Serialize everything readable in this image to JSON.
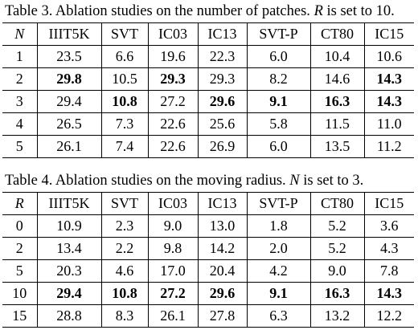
{
  "table3": {
    "caption_prefix": "Table 3. Ablation studies on the number of patches.",
    "caption_var": "R",
    "caption_suffix": "is set to 10.",
    "param_header": "N",
    "columns": [
      "IIIT5K",
      "SVT",
      "IC03",
      "IC13",
      "SVT-P",
      "CT80",
      "IC15"
    ],
    "rows": [
      {
        "param": "1",
        "values": [
          "23.5",
          "6.6",
          "19.6",
          "22.3",
          "6.0",
          "10.4",
          "10.6"
        ],
        "bold": []
      },
      {
        "param": "2",
        "values": [
          "29.8",
          "10.5",
          "29.3",
          "29.3",
          "8.2",
          "14.6",
          "14.3"
        ],
        "bold": [
          0,
          2,
          6
        ]
      },
      {
        "param": "3",
        "values": [
          "29.4",
          "10.8",
          "27.2",
          "29.6",
          "9.1",
          "16.3",
          "14.3"
        ],
        "bold": [
          1,
          3,
          4,
          5,
          6
        ]
      },
      {
        "param": "4",
        "values": [
          "26.5",
          "7.3",
          "22.6",
          "25.6",
          "5.8",
          "11.5",
          "11.0"
        ],
        "bold": []
      },
      {
        "param": "5",
        "values": [
          "26.1",
          "7.4",
          "22.6",
          "26.9",
          "6.0",
          "13.5",
          "11.2"
        ],
        "bold": []
      }
    ]
  },
  "table4": {
    "caption_prefix": "Table 4. Ablation studies on the moving radius.",
    "caption_var": "N",
    "caption_suffix": "is set to 3.",
    "param_header": "R",
    "columns": [
      "IIIT5K",
      "SVT",
      "IC03",
      "IC13",
      "SVT-P",
      "CT80",
      "IC15"
    ],
    "rows": [
      {
        "param": "0",
        "values": [
          "10.9",
          "2.3",
          "9.0",
          "13.0",
          "1.8",
          "5.2",
          "3.6"
        ],
        "bold": []
      },
      {
        "param": "2",
        "values": [
          "13.4",
          "2.2",
          "9.8",
          "14.2",
          "2.0",
          "5.2",
          "4.3"
        ],
        "bold": []
      },
      {
        "param": "5",
        "values": [
          "20.3",
          "4.6",
          "17.0",
          "20.4",
          "4.2",
          "9.0",
          "7.8"
        ],
        "bold": []
      },
      {
        "param": "10",
        "values": [
          "29.4",
          "10.8",
          "27.2",
          "29.6",
          "9.1",
          "16.3",
          "14.3"
        ],
        "bold": [
          0,
          1,
          2,
          3,
          4,
          5,
          6
        ]
      },
      {
        "param": "15",
        "values": [
          "28.8",
          "8.3",
          "26.1",
          "27.8",
          "6.3",
          "13.2",
          "12.2"
        ],
        "bold": []
      }
    ]
  }
}
